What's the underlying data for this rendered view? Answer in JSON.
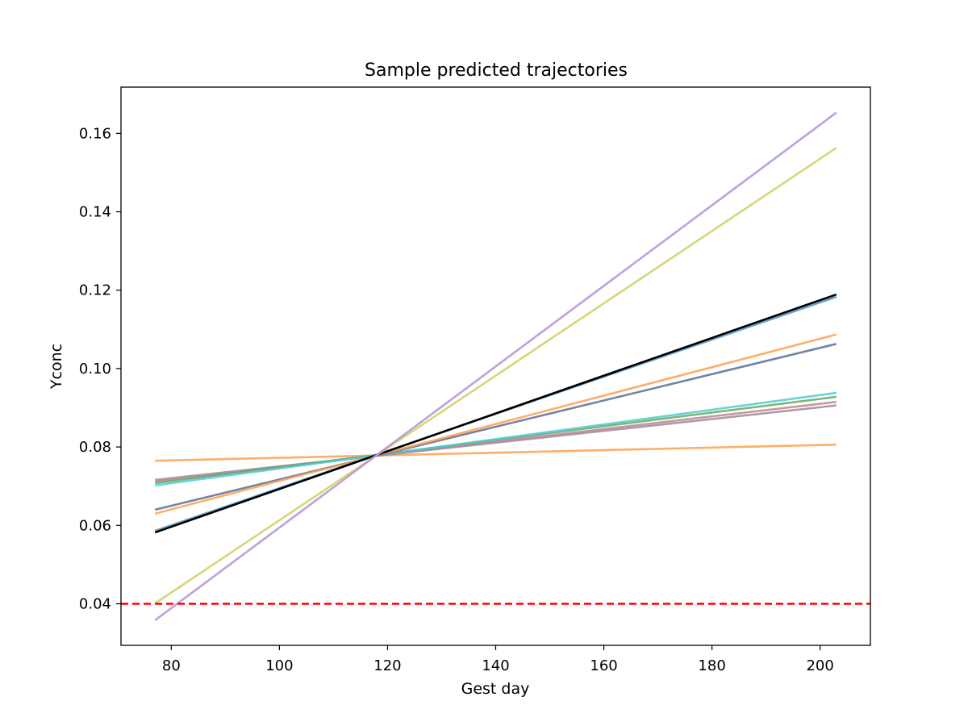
{
  "chart_data": {
    "type": "line",
    "title": "Sample predicted trajectories",
    "xlabel": "Gest day",
    "ylabel": "Yconc",
    "xlim": [
      70.7,
      209.3
    ],
    "ylim": [
      0.0294,
      0.1718
    ],
    "xticks": [
      80,
      100,
      120,
      140,
      160,
      180,
      200
    ],
    "yticks": [
      0.04,
      0.06,
      0.08,
      0.1,
      0.12,
      0.14,
      0.16
    ],
    "ytick_labels": [
      "0.04",
      "0.06",
      "0.08",
      "0.10",
      "0.12",
      "0.14",
      "0.16"
    ],
    "grid": false,
    "legend": "none",
    "reference_line": {
      "y": 0.04,
      "color": "#ff0000",
      "style": "dashed"
    },
    "series": [
      {
        "color": "#ffa04f",
        "points": [
          [
            77,
            0.0765
          ],
          [
            203,
            0.0806
          ]
        ]
      },
      {
        "color": "#9d8a9a",
        "points": [
          [
            77,
            0.0716
          ],
          [
            203,
            0.0906
          ]
        ]
      },
      {
        "color": "#c0829a",
        "points": [
          [
            77,
            0.0712
          ],
          [
            203,
            0.0915
          ]
        ]
      },
      {
        "color": "#5fad5f",
        "points": [
          [
            77,
            0.0708
          ],
          [
            203,
            0.0928
          ]
        ]
      },
      {
        "color": "#4fc9d6",
        "points": [
          [
            77,
            0.0702
          ],
          [
            203,
            0.0938
          ]
        ]
      },
      {
        "color": "#5a6d9a",
        "points": [
          [
            77,
            0.064
          ],
          [
            203,
            0.1063
          ]
        ]
      },
      {
        "color": "#ffa04f",
        "points": [
          [
            77,
            0.063
          ],
          [
            203,
            0.1087
          ]
        ]
      },
      {
        "color": "#4f93c3",
        "points": [
          [
            77,
            0.0586
          ],
          [
            203,
            0.1183
          ]
        ]
      },
      {
        "color": "#000000",
        "points": [
          [
            77,
            0.0582
          ],
          [
            203,
            0.1189
          ]
        ]
      },
      {
        "color": "#cfcf60",
        "points": [
          [
            77,
            0.0401
          ],
          [
            203,
            0.1563
          ]
        ]
      },
      {
        "color": "#b48fd6",
        "points": [
          [
            77,
            0.0358
          ],
          [
            203,
            0.1653
          ]
        ]
      }
    ]
  }
}
